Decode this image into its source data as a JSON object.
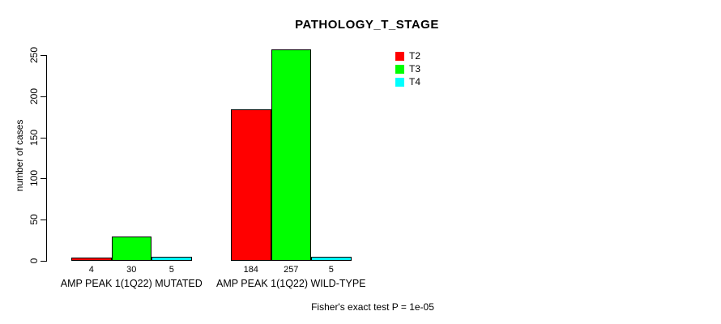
{
  "title": "PATHOLOGY_T_STAGE",
  "footer": "Fisher's exact test P = 1e-05",
  "chart_data": {
    "type": "bar",
    "title": "PATHOLOGY_T_STAGE",
    "categories": [
      "AMP PEAK 1(1Q22) MUTATED",
      "AMP PEAK 1(1Q22) WILD-TYPE"
    ],
    "series": [
      {
        "name": "T2",
        "color": "#FF0000",
        "values": [
          4,
          184
        ]
      },
      {
        "name": "T3",
        "color": "#00FF00",
        "values": [
          30,
          257
        ]
      },
      {
        "name": "T4",
        "color": "#00FFFF",
        "values": [
          5,
          5
        ]
      }
    ],
    "xlabel": "",
    "ylabel": "number of cases",
    "ylim": [
      0,
      250
    ],
    "yticks": [
      0,
      50,
      100,
      150,
      200,
      250
    ],
    "grid": false,
    "bar_value_labels_shown": true,
    "legend_position": "top-right",
    "annotation": "Fisher's exact test P = 1e-05"
  }
}
